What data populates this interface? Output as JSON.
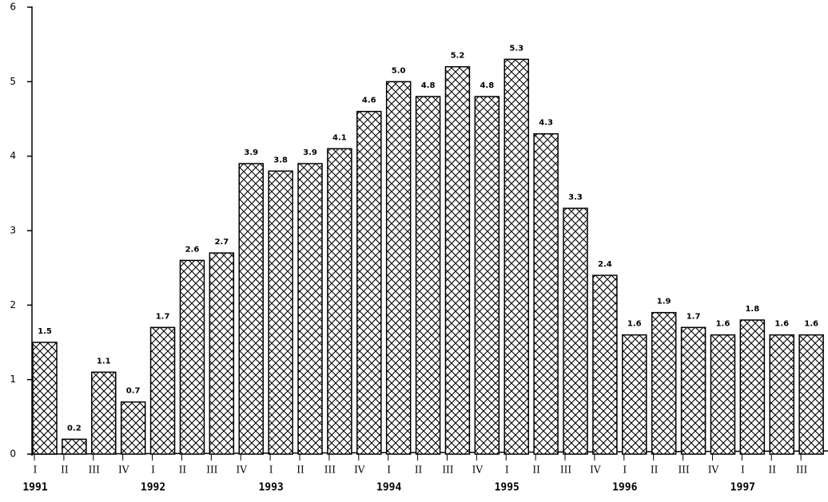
{
  "chart_data": {
    "type": "bar",
    "categories": [
      "I",
      "II",
      "III",
      "IV",
      "I",
      "II",
      "III",
      "IV",
      "I",
      "II",
      "III",
      "IV",
      "I",
      "II",
      "III",
      "IV",
      "I",
      "II",
      "III",
      "IV",
      "I",
      "II",
      "III",
      "IV",
      "I",
      "II",
      "III"
    ],
    "year_labels": [
      "1991",
      "1992",
      "1993",
      "1994",
      "1995",
      "1996",
      "1997"
    ],
    "values": [
      1.5,
      0.2,
      1.1,
      0.7,
      1.7,
      2.6,
      2.7,
      3.9,
      3.8,
      3.9,
      4.1,
      4.6,
      5.0,
      4.8,
      5.2,
      4.8,
      5.3,
      4.3,
      3.3,
      2.4,
      1.6,
      1.9,
      1.7,
      1.6,
      1.8,
      1.6,
      1.6
    ],
    "value_labels": [
      "1.5",
      "0.2",
      "1.1",
      "0.7",
      "1.7",
      "2.6",
      "2.7",
      "3.9",
      "3.8",
      "3.9",
      "4.1",
      "4.6",
      "5.0",
      "4.8",
      "5.2",
      "4.8",
      "5.3",
      "4.3",
      "3.3",
      "2.4",
      "1.6",
      "1.9",
      "1.7",
      "1.6",
      "1.8",
      "1.6",
      "1.6"
    ],
    "color": "#000000",
    "ylim": [
      0,
      6
    ],
    "yticks": [
      0,
      1,
      2,
      3,
      4,
      5,
      6
    ],
    "grid": false
  }
}
